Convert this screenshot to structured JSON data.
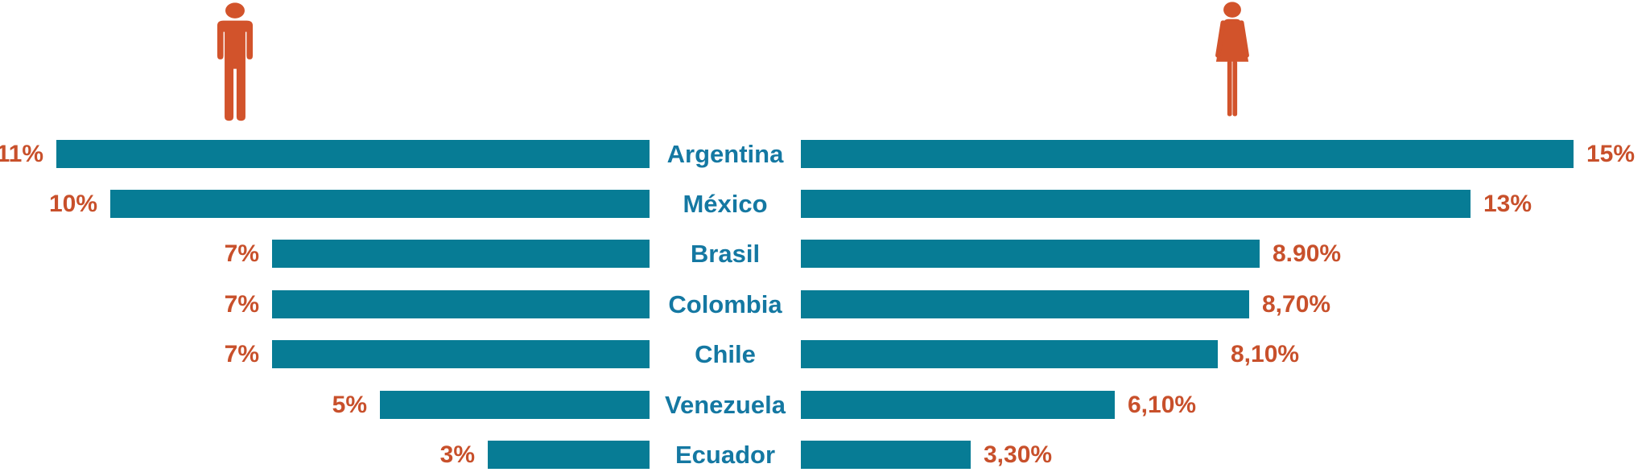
{
  "chart_data": {
    "type": "bar",
    "variant": "diverging-horizontal",
    "title": "",
    "categories": [
      "Argentina",
      "México",
      "Brasil",
      "Colombia",
      "Chile",
      "Venezuela",
      "Ecuador"
    ],
    "series": [
      {
        "name": "male",
        "icon": "man-icon",
        "side": "left",
        "labels": [
          "11%",
          "10%",
          "7%",
          "7%",
          "7%",
          "5%",
          "3%"
        ],
        "values": [
          11,
          10,
          7,
          7,
          7,
          5,
          3
        ]
      },
      {
        "name": "female",
        "icon": "woman-icon",
        "side": "right",
        "labels": [
          "15%",
          "13%",
          "8.90%",
          "8,70%",
          "8,10%",
          "6,10%",
          "3,30%"
        ],
        "values": [
          15,
          13,
          8.9,
          8.7,
          8.1,
          6.1,
          3.3
        ]
      }
    ],
    "colors": {
      "bar": "#077c95",
      "value_label": "#c8502b",
      "category_label": "#1478a2",
      "icon": "#d2532b",
      "background": "#ffffff"
    },
    "grid": false,
    "axes_visible": false,
    "legend_position": "icons-top"
  }
}
